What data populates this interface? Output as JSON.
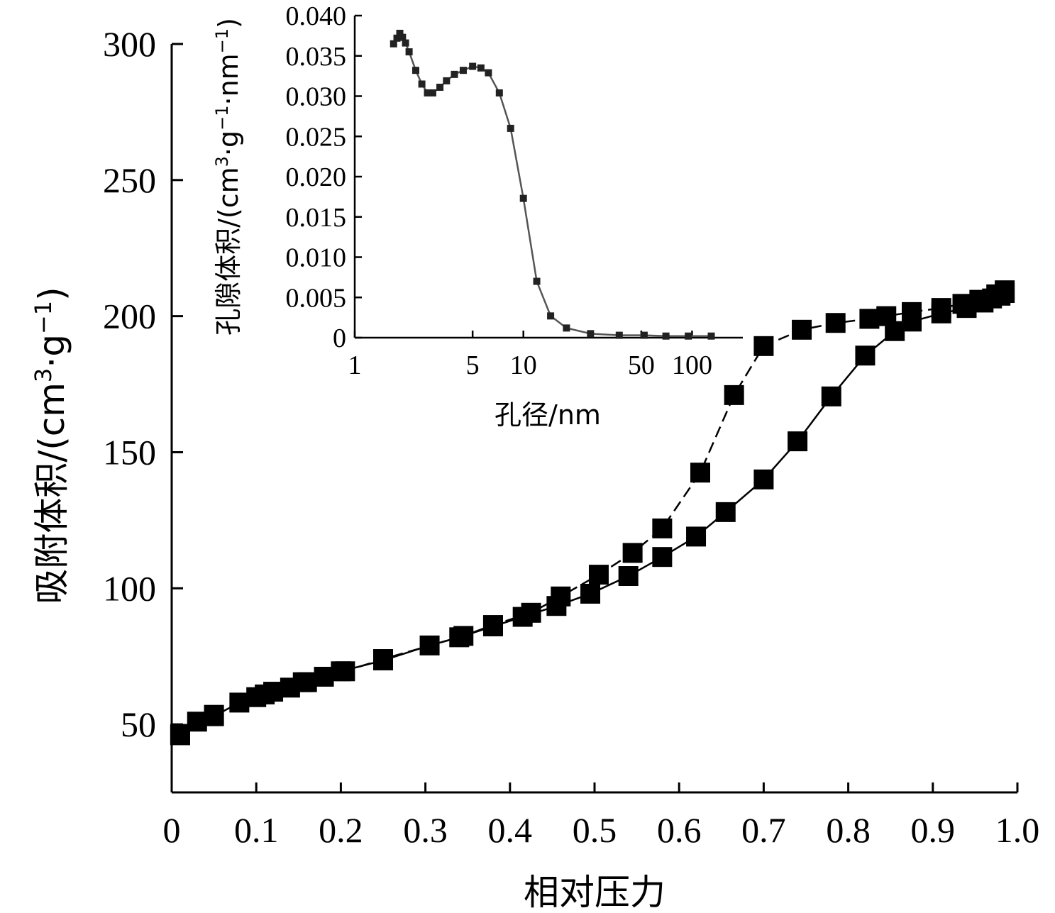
{
  "chart_data": [
    {
      "type": "line",
      "title": "",
      "xlabel": "相对压力",
      "ylabel": {
        "main": "吸附体积/(cm",
        "sup1": "3",
        "mid": "·g",
        "sup2": "−1",
        "end": ")"
      },
      "xlim": [
        0,
        1.0
      ],
      "ylim": [
        25,
        300
      ],
      "x_ticks": [
        0,
        0.1,
        0.2,
        0.3,
        0.4,
        0.5,
        0.6,
        0.7,
        0.8,
        0.9,
        1.0
      ],
      "x_tick_labels": [
        "0",
        "0.1",
        "0.2",
        "0.3",
        "0.4",
        "0.5",
        "0.6",
        "0.7",
        "0.8",
        "0.9",
        "1.0"
      ],
      "y_ticks": [
        50,
        100,
        150,
        200,
        250,
        300
      ],
      "y_tick_labels": [
        "50",
        "100",
        "150",
        "200",
        "250",
        "300"
      ],
      "grid": false,
      "legend": "none",
      "series": [
        {
          "role": "adsorption",
          "line_style": "solid",
          "color": "#000000",
          "marker": "square",
          "points": [
            [
              0.01,
              46
            ],
            [
              0.03,
              51
            ],
            [
              0.05,
              53
            ],
            [
              0.08,
              58
            ],
            [
              0.1,
              60
            ],
            [
              0.12,
              62
            ],
            [
              0.14,
              63.5
            ],
            [
              0.16,
              65.5
            ],
            [
              0.18,
              67.5
            ],
            [
              0.2,
              69.5
            ],
            [
              0.25,
              73.5
            ],
            [
              0.305,
              79
            ],
            [
              0.34,
              82
            ],
            [
              0.38,
              86
            ],
            [
              0.415,
              89.5
            ],
            [
              0.455,
              93.5
            ],
            [
              0.495,
              98
            ],
            [
              0.54,
              104.5
            ],
            [
              0.58,
              111.5
            ],
            [
              0.62,
              119
            ],
            [
              0.655,
              128
            ],
            [
              0.7,
              140
            ],
            [
              0.74,
              154
            ],
            [
              0.78,
              170.5
            ],
            [
              0.82,
              185.5
            ],
            [
              0.855,
              194.5
            ],
            [
              0.875,
              198
            ],
            [
              0.91,
              201
            ],
            [
              0.94,
              203
            ],
            [
              0.96,
              205
            ],
            [
              0.97,
              206.5
            ],
            [
              0.98,
              207.5
            ],
            [
              0.985,
              208.5
            ]
          ]
        },
        {
          "role": "desorption",
          "line_style": "dashed",
          "color": "#000000",
          "marker": "square",
          "points": [
            [
              0.985,
              209.5
            ],
            [
              0.975,
              208
            ],
            [
              0.955,
              206
            ],
            [
              0.935,
              204.5
            ],
            [
              0.91,
              203
            ],
            [
              0.875,
              201.5
            ],
            [
              0.845,
              200
            ],
            [
              0.825,
              199
            ],
            [
              0.785,
              197.5
            ],
            [
              0.745,
              195
            ],
            [
              0.7,
              189
            ],
            [
              0.665,
              171
            ],
            [
              0.625,
              142.5
            ],
            [
              0.58,
              122
            ],
            [
              0.545,
              113
            ],
            [
              0.505,
              105
            ],
            [
              0.46,
              97
            ],
            [
              0.425,
              91
            ],
            [
              0.38,
              86.5
            ],
            [
              0.345,
              82.5
            ],
            [
              0.25,
              74
            ],
            [
              0.205,
              69.5
            ],
            [
              0.155,
              65.5
            ],
            [
              0.11,
              61
            ],
            [
              0.05,
              53.5
            ],
            [
              0.01,
              46.5
            ]
          ]
        }
      ]
    },
    {
      "type": "line",
      "title": "",
      "xlabel": "孔径/nm",
      "ylabel": {
        "main": "孔隙体积/(cm",
        "sup1": "3",
        "mid": "·g",
        "sup2": "−1",
        "mid2": "·nm",
        "sup3": "−1",
        "end": ")"
      },
      "x_scale": "log",
      "xlim": [
        1,
        200
      ],
      "ylim": [
        0,
        0.04
      ],
      "x_ticks": [
        1,
        5,
        10,
        50,
        100
      ],
      "x_tick_labels": [
        "1",
        "5",
        "10",
        "50",
        "100"
      ],
      "y_ticks": [
        0,
        0.005,
        0.01,
        0.015,
        0.02,
        0.025,
        0.03,
        0.035,
        0.04
      ],
      "y_tick_labels": [
        "0",
        "0.005",
        "0.010",
        "0.015",
        "0.020",
        "0.025",
        "0.030",
        "0.035",
        "0.040"
      ],
      "grid": false,
      "legend": "none",
      "series": [
        {
          "role": "pore-size-distribution",
          "line_style": "solid",
          "color": "#555555",
          "marker": "square",
          "points": [
            [
              1.7,
              0.0365
            ],
            [
              1.78,
              0.0372
            ],
            [
              1.85,
              0.0378
            ],
            [
              1.92,
              0.0373
            ],
            [
              2.0,
              0.0366
            ],
            [
              2.1,
              0.0355
            ],
            [
              2.3,
              0.0332
            ],
            [
              2.5,
              0.0315
            ],
            [
              2.7,
              0.0304
            ],
            [
              2.9,
              0.0304
            ],
            [
              3.2,
              0.0311
            ],
            [
              3.5,
              0.0319
            ],
            [
              3.9,
              0.0327
            ],
            [
              4.4,
              0.0332
            ],
            [
              5.0,
              0.0337
            ],
            [
              5.6,
              0.0335
            ],
            [
              6.2,
              0.0329
            ],
            [
              7.2,
              0.0304
            ],
            [
              8.4,
              0.026
            ],
            [
              10.0,
              0.0173
            ],
            [
              12.0,
              0.007
            ],
            [
              14.5,
              0.0027
            ],
            [
              18.0,
              0.0012
            ],
            [
              25.0,
              0.0005
            ],
            [
              37.0,
              0.0003
            ],
            [
              52.0,
              0.0003
            ],
            [
              70.0,
              0.0002
            ],
            [
              95.0,
              0.0002
            ],
            [
              130.0,
              0.0002
            ]
          ]
        }
      ]
    }
  ]
}
